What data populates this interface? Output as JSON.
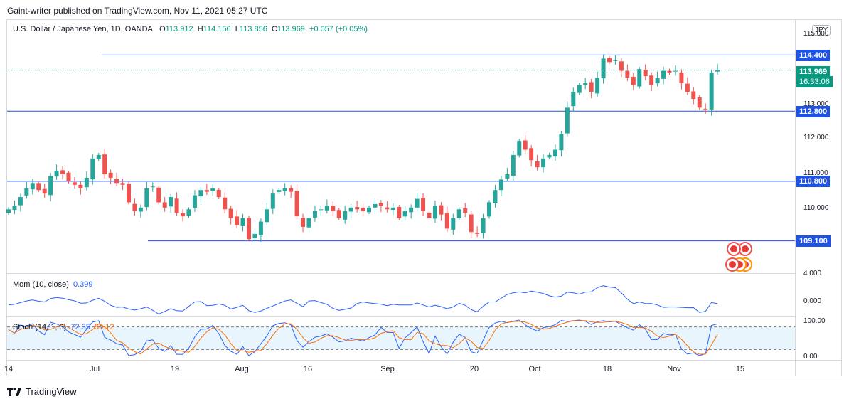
{
  "header": {
    "published": "Gaint-writer published on TradingView.com, Nov 11, 2021 05:27 UTC"
  },
  "legend": {
    "symbol": "U.S. Dollar / Japanese Yen, 1D, OANDA",
    "o_label": "O",
    "o_value": "113.912",
    "h_label": "H",
    "h_value": "114.156",
    "l_label": "L",
    "l_value": "113.856",
    "c_label": "C",
    "c_value": "113.969",
    "change": "+0.057 (+0.05%)"
  },
  "currency_badge": "JPY",
  "mom_legend": {
    "label": "Mom (10, close)",
    "value": "0.399"
  },
  "stoch_legend": {
    "label": "Stoch (14, 1, 3)",
    "k_value": "72.35",
    "d_value": "50.12"
  },
  "price_axis": {
    "ticks": [
      "115.000",
      "114.000",
      "113.000",
      "112.000",
      "111.000",
      "110.000"
    ],
    "tags": [
      {
        "label": "114.400",
        "color": "#1e53e5"
      },
      {
        "label": "113.969",
        "color": "#089981"
      },
      {
        "label": "16:33:06",
        "color": "#089981"
      },
      {
        "label": "112.800",
        "color": "#1e53e5"
      },
      {
        "label": "110.800",
        "color": "#1e53e5"
      },
      {
        "label": "109.100",
        "color": "#1e53e5"
      }
    ]
  },
  "mom_axis": {
    "ticks": [
      "4.000",
      "0.000"
    ]
  },
  "stoch_axis": {
    "ticks": [
      "100.00",
      "0.00"
    ]
  },
  "time_axis": {
    "labels": [
      "14",
      "Jul",
      "19",
      "Aug",
      "16",
      "Sep",
      "20",
      "Oct",
      "18",
      "Nov",
      "15"
    ]
  },
  "footer": {
    "brand": "TradingView"
  },
  "colors": {
    "up": "#26a69a",
    "down": "#ef5350",
    "level": "#1e53e5",
    "mom": "#2962ff",
    "stoch_d": "#ff6d00"
  },
  "chart_data": {
    "type": "candlestick",
    "title": "U.S. Dollar / Japanese Yen, 1D, OANDA",
    "y_range": [
      108.2,
      115.2
    ],
    "horizontal_levels": [
      114.4,
      112.8,
      110.8,
      109.1
    ],
    "last_price": 113.969,
    "close": [
      110.0,
      110.1,
      110.35,
      110.6,
      110.75,
      110.55,
      110.45,
      110.95,
      111.1,
      111.0,
      110.8,
      110.7,
      110.6,
      110.9,
      111.45,
      111.55,
      111.0,
      110.9,
      110.75,
      110.7,
      110.2,
      109.95,
      110.05,
      110.6,
      110.65,
      110.2,
      110.05,
      110.35,
      109.9,
      109.8,
      110.0,
      110.4,
      110.55,
      110.5,
      110.6,
      110.35,
      110.0,
      109.75,
      109.55,
      109.75,
      109.15,
      109.3,
      109.65,
      110.0,
      110.45,
      110.55,
      110.6,
      110.5,
      109.8,
      109.5,
      109.75,
      109.95,
      110.0,
      110.1,
      109.95,
      109.75,
      109.95,
      110.05,
      110.0,
      109.95,
      110.05,
      110.15,
      110.1,
      110.0,
      110.05,
      109.75,
      109.95,
      110.05,
      110.3,
      109.95,
      109.75,
      110.1,
      109.85,
      109.45,
      109.75,
      110.0,
      109.9,
      109.35,
      109.3,
      109.75,
      110.2,
      110.55,
      110.85,
      111.0,
      111.55,
      111.95,
      111.7,
      111.4,
      111.2,
      111.45,
      111.55,
      111.7,
      112.15,
      112.9,
      113.35,
      113.55,
      113.6,
      113.35,
      113.75,
      114.3,
      114.2,
      114.25,
      113.95,
      113.75,
      113.55,
      114.0,
      113.8,
      113.55,
      113.75,
      113.95,
      113.9,
      113.95,
      113.6,
      113.35,
      113.15,
      112.9,
      112.85,
      113.9,
      113.97
    ],
    "indicators": {
      "momentum": {
        "period": 10,
        "source": "close",
        "last": 0.399,
        "y_range": [
          -1.5,
          4.5
        ]
      },
      "stochastic": {
        "k_period": 14,
        "k_smooth": 1,
        "d_smooth": 3,
        "k_last": 72.35,
        "d_last": 50.12,
        "y_range": [
          0,
          100
        ],
        "bands": [
          80,
          20
        ]
      }
    }
  }
}
